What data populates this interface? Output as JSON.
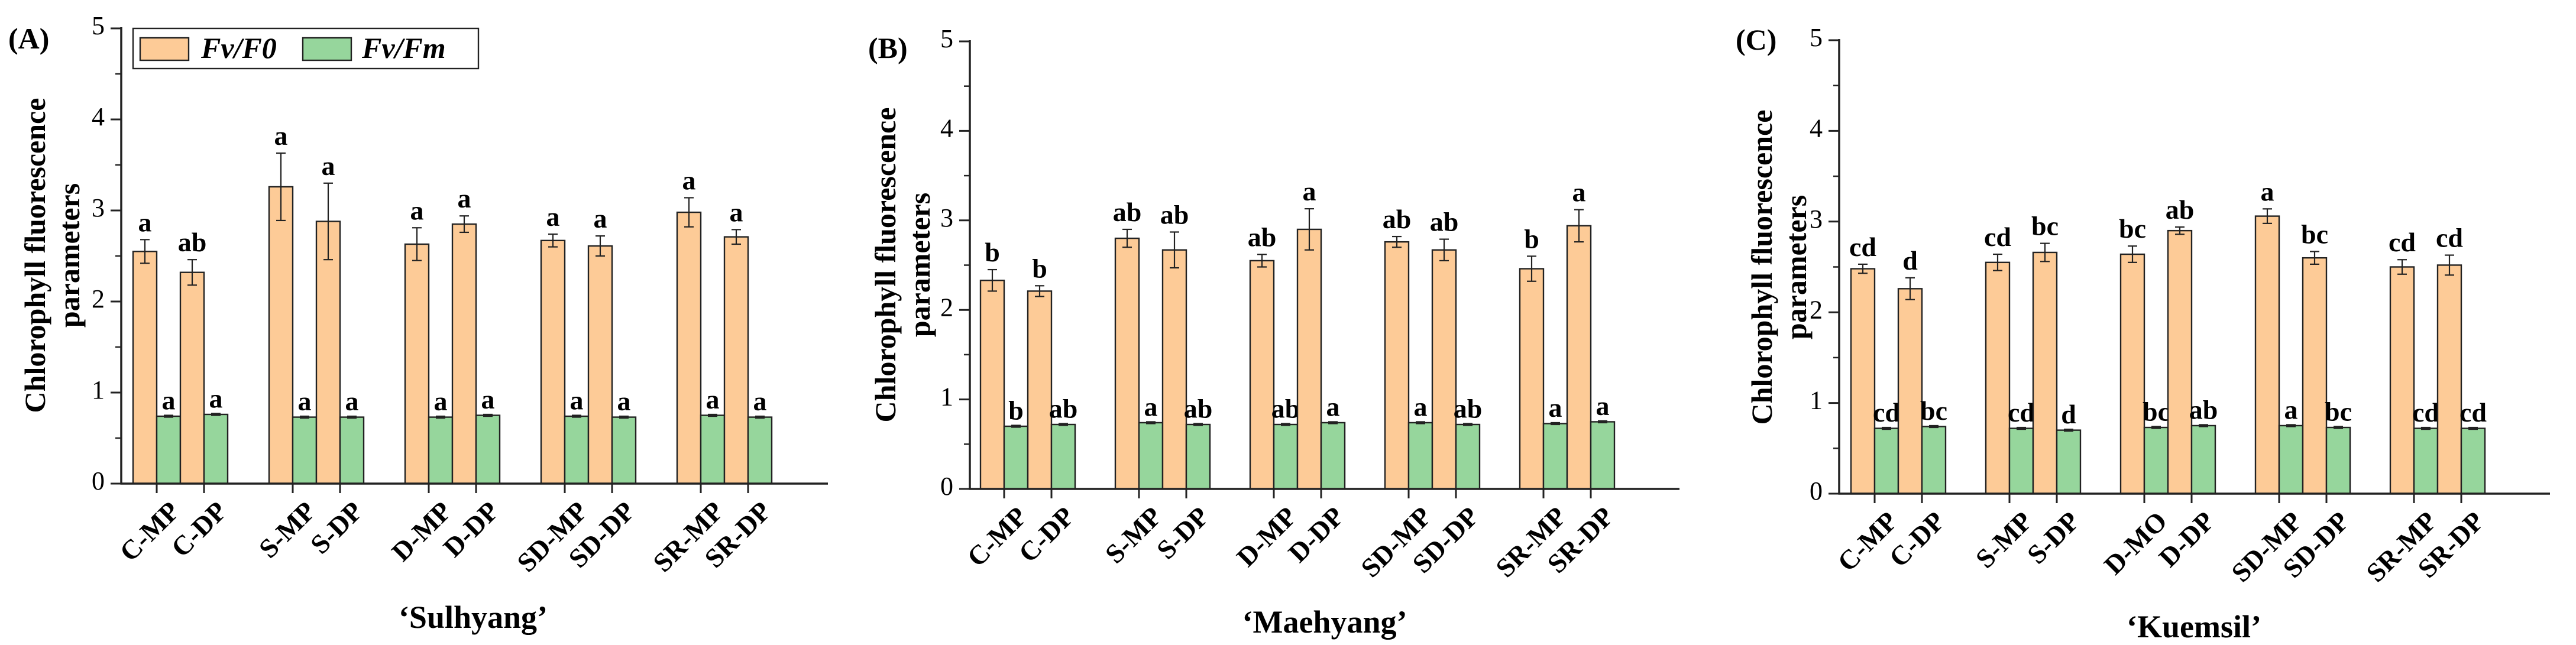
{
  "chart_data": [
    {
      "type": "bar",
      "panel_label": "(A)",
      "xlabel": "‘Sulhyang’",
      "ylabel_line1": "Chlorophyll fluorescence",
      "ylabel_line2": "parameters",
      "ylim": [
        0,
        5
      ],
      "yticks": [
        "0",
        "1",
        "2",
        "3",
        "4",
        "5"
      ],
      "categories": [
        "C-MP",
        "C-DP",
        "S-MP",
        "S-DP",
        "D-MP",
        "D-DP",
        "SD-MP",
        "SD-DP",
        "SR-MP",
        "SR-DP"
      ],
      "series": [
        {
          "name": "Fv/F0",
          "color": "#FDCB97",
          "values": [
            2.55,
            2.32,
            3.26,
            2.88,
            2.63,
            2.85,
            2.67,
            2.61,
            2.98,
            2.71
          ],
          "errors": [
            0.13,
            0.14,
            0.37,
            0.42,
            0.18,
            0.09,
            0.07,
            0.11,
            0.16,
            0.08
          ],
          "letters": [
            "a",
            "ab",
            "a",
            "a",
            "a",
            "a",
            "a",
            "a",
            "a",
            "a"
          ]
        },
        {
          "name": "Fv/Fm",
          "color": "#96D69C",
          "values": [
            0.74,
            0.76,
            0.73,
            0.73,
            0.73,
            0.75,
            0.74,
            0.73,
            0.75,
            0.73
          ],
          "errors": [
            0.01,
            0.01,
            0.01,
            0.01,
            0.01,
            0.01,
            0.01,
            0.01,
            0.01,
            0.01
          ],
          "letters": [
            "a",
            "a",
            "a",
            "a",
            "a",
            "a",
            "a",
            "a",
            "a",
            "a"
          ]
        }
      ],
      "legend": [
        "Fv/F0",
        "Fv/Fm"
      ],
      "legend_position": "top-left"
    },
    {
      "type": "bar",
      "panel_label": "(B)",
      "xlabel": "‘Maehyang’",
      "ylabel_line1": "Chlorophyll fluorescence",
      "ylabel_line2": "parameters",
      "ylim": [
        0,
        5
      ],
      "yticks": [
        "0",
        "1",
        "2",
        "3",
        "4",
        "5"
      ],
      "categories": [
        "C-MP",
        "C-DP",
        "S-MP",
        "S-DP",
        "D-MP",
        "D-DP",
        "SD-MP",
        "SD-DP",
        "SR-MP",
        "SR-DP"
      ],
      "series": [
        {
          "name": "Fv/F0",
          "color": "#FDCB97",
          "values": [
            2.33,
            2.21,
            2.8,
            2.67,
            2.55,
            2.9,
            2.76,
            2.67,
            2.46,
            2.94
          ],
          "errors": [
            0.12,
            0.06,
            0.1,
            0.2,
            0.07,
            0.23,
            0.06,
            0.12,
            0.14,
            0.18
          ],
          "letters": [
            "b",
            "b",
            "ab",
            "ab",
            "ab",
            "a",
            "ab",
            "ab",
            "b",
            "a"
          ]
        },
        {
          "name": "Fv/Fm",
          "color": "#96D69C",
          "values": [
            0.7,
            0.72,
            0.74,
            0.72,
            0.72,
            0.74,
            0.74,
            0.72,
            0.73,
            0.75
          ],
          "errors": [
            0.01,
            0.01,
            0.01,
            0.01,
            0.01,
            0.01,
            0.01,
            0.01,
            0.01,
            0.01
          ],
          "letters": [
            "b",
            "ab",
            "a",
            "ab",
            "ab",
            "a",
            "a",
            "ab",
            "a",
            "a"
          ]
        }
      ],
      "legend": [],
      "legend_position": "none"
    },
    {
      "type": "bar",
      "panel_label": "(C)",
      "xlabel": "‘Kuemsil’",
      "ylabel_line1": "Chlorophyll fluorescence",
      "ylabel_line2": "parameters",
      "ylim": [
        0,
        5
      ],
      "yticks": [
        "0",
        "1",
        "2",
        "3",
        "4",
        "5"
      ],
      "categories": [
        "C-MP",
        "C-DP",
        "S-MP",
        "S-DP",
        "D-MO",
        "D-DP",
        "SD-MP",
        "SD-DP",
        "SR-MP",
        "SR-DP"
      ],
      "series": [
        {
          "name": "Fv/F0",
          "color": "#FDCB97",
          "values": [
            2.48,
            2.26,
            2.55,
            2.66,
            2.64,
            2.9,
            3.06,
            2.6,
            2.5,
            2.52
          ],
          "errors": [
            0.05,
            0.12,
            0.09,
            0.1,
            0.09,
            0.04,
            0.08,
            0.07,
            0.08,
            0.11
          ],
          "letters": [
            "cd",
            "d",
            "cd",
            "bc",
            "bc",
            "ab",
            "a",
            "bc",
            "cd",
            "cd"
          ]
        },
        {
          "name": "Fv/Fm",
          "color": "#96D69C",
          "values": [
            0.72,
            0.74,
            0.72,
            0.7,
            0.73,
            0.75,
            0.75,
            0.73,
            0.72,
            0.72
          ],
          "errors": [
            0.01,
            0.01,
            0.01,
            0.01,
            0.01,
            0.01,
            0.01,
            0.01,
            0.01,
            0.01
          ],
          "letters": [
            "cd",
            "bc",
            "cd",
            "d",
            "bc",
            "ab",
            "a",
            "bc",
            "cd",
            "cd"
          ]
        }
      ],
      "legend": [],
      "legend_position": "none"
    }
  ]
}
